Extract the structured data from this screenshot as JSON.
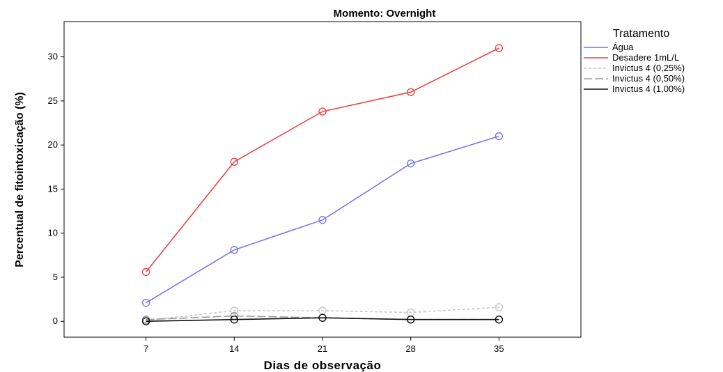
{
  "chart_data": {
    "type": "line",
    "title": "Momento: Overnight",
    "xlabel": "Dias de observação",
    "ylabel": "Percentual de fitointoxicação (%)",
    "x": [
      7,
      14,
      21,
      28,
      35
    ],
    "x_ticks": [
      "7",
      "14",
      "21",
      "28",
      "35"
    ],
    "y_ticks": [
      0,
      5,
      10,
      15,
      20,
      25,
      30
    ],
    "xlim": [
      0.5,
      41.5
    ],
    "ylim": [
      -1.8,
      34
    ],
    "grid": false,
    "legend_title": "Tratamento",
    "legend_position": "right",
    "series": [
      {
        "name": "Água",
        "values": [
          2.1,
          8.1,
          11.5,
          17.9,
          21.0
        ],
        "color": "#7777ee",
        "dash": "solid"
      },
      {
        "name": "Desadere 1mL/L",
        "values": [
          5.6,
          18.1,
          23.8,
          26.0,
          31.0
        ],
        "color": "#ee4444",
        "dash": "solid"
      },
      {
        "name": "Invictus 4 (0,25%)",
        "values": [
          0.1,
          1.2,
          1.2,
          1.0,
          1.6
        ],
        "color": "#c8c8c8",
        "dash": "dashed"
      },
      {
        "name": "Invictus 4 (0,50%)",
        "values": [
          0.2,
          0.6,
          0.4,
          0.2,
          0.2
        ],
        "color": "#999999",
        "dash": "longdash"
      },
      {
        "name": "Invictus 4 (1,00%)",
        "values": [
          0.0,
          0.2,
          0.4,
          0.2,
          0.2
        ],
        "color": "#111111",
        "dash": "solid"
      }
    ]
  }
}
